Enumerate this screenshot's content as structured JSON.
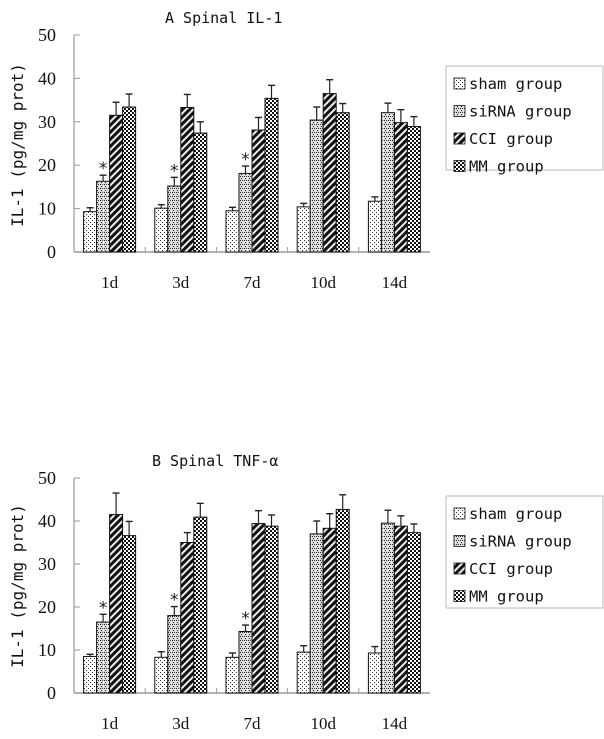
{
  "chart_data": [
    {
      "type": "bar",
      "title": "A Spinal IL-1",
      "xlabel": "",
      "ylabel": "IL-1 (pg/mg prot)",
      "ylim": [
        0,
        50
      ],
      "yticks": [
        0,
        10,
        20,
        30,
        40,
        50
      ],
      "categories": [
        "1d",
        "3d",
        "7d",
        "10d",
        "14d"
      ],
      "legend_position": "right",
      "series": [
        {
          "name": "sham group",
          "pattern": "dots",
          "values": [
            9.3,
            10.1,
            9.5,
            10.4,
            11.7
          ],
          "errors": [
            0.9,
            0.8,
            0.8,
            0.8,
            1.0
          ]
        },
        {
          "name": "siRNA group",
          "pattern": "crosshatch",
          "values": [
            16.3,
            15.2,
            18.1,
            30.4,
            32.1
          ],
          "errors": [
            1.4,
            2.0,
            1.7,
            3.0,
            2.2
          ]
        },
        {
          "name": "CCI group",
          "pattern": "diagonal",
          "values": [
            31.5,
            33.3,
            28.1,
            36.5,
            29.8
          ],
          "errors": [
            3.0,
            3.0,
            2.9,
            3.2,
            3.0
          ]
        },
        {
          "name": "MM group",
          "pattern": "checker",
          "values": [
            33.4,
            27.4,
            35.4,
            32.1,
            28.9
          ],
          "errors": [
            3.0,
            2.6,
            3.0,
            2.1,
            2.3
          ]
        }
      ],
      "annotations": [
        {
          "text": "*",
          "series": "siRNA group",
          "category": "1d"
        },
        {
          "text": "*",
          "series": "siRNA group",
          "category": "3d"
        },
        {
          "text": "*",
          "series": "siRNA group",
          "category": "7d"
        }
      ]
    },
    {
      "type": "bar",
      "title": "B Spinal TNF-α",
      "xlabel": "",
      "ylabel": "IL-1 (pg/mg prot)",
      "ylim": [
        0,
        50
      ],
      "yticks": [
        0,
        10,
        20,
        30,
        40,
        50
      ],
      "categories": [
        "1d",
        "3d",
        "7d",
        "10d",
        "14d"
      ],
      "legend_position": "right",
      "series": [
        {
          "name": "sham group",
          "pattern": "dots",
          "values": [
            8.5,
            8.3,
            8.3,
            9.5,
            9.3
          ],
          "errors": [
            0.5,
            1.3,
            1.0,
            1.5,
            1.5
          ]
        },
        {
          "name": "siRNA group",
          "pattern": "crosshatch",
          "values": [
            16.5,
            18.0,
            14.3,
            37.0,
            39.5
          ],
          "errors": [
            1.8,
            2.1,
            1.5,
            3.0,
            3.0
          ]
        },
        {
          "name": "CCI group",
          "pattern": "diagonal",
          "values": [
            41.5,
            35.0,
            39.4,
            38.3,
            38.8
          ],
          "errors": [
            5.0,
            2.3,
            3.0,
            3.4,
            2.4
          ]
        },
        {
          "name": "MM group",
          "pattern": "checker",
          "values": [
            36.6,
            40.9,
            38.8,
            42.7,
            37.3
          ],
          "errors": [
            3.3,
            3.2,
            2.6,
            3.4,
            2.0
          ]
        }
      ],
      "annotations": [
        {
          "text": "*",
          "series": "siRNA group",
          "category": "1d"
        },
        {
          "text": "*",
          "series": "siRNA group",
          "category": "3d"
        },
        {
          "text": "*",
          "series": "siRNA group",
          "category": "7d"
        }
      ]
    }
  ]
}
